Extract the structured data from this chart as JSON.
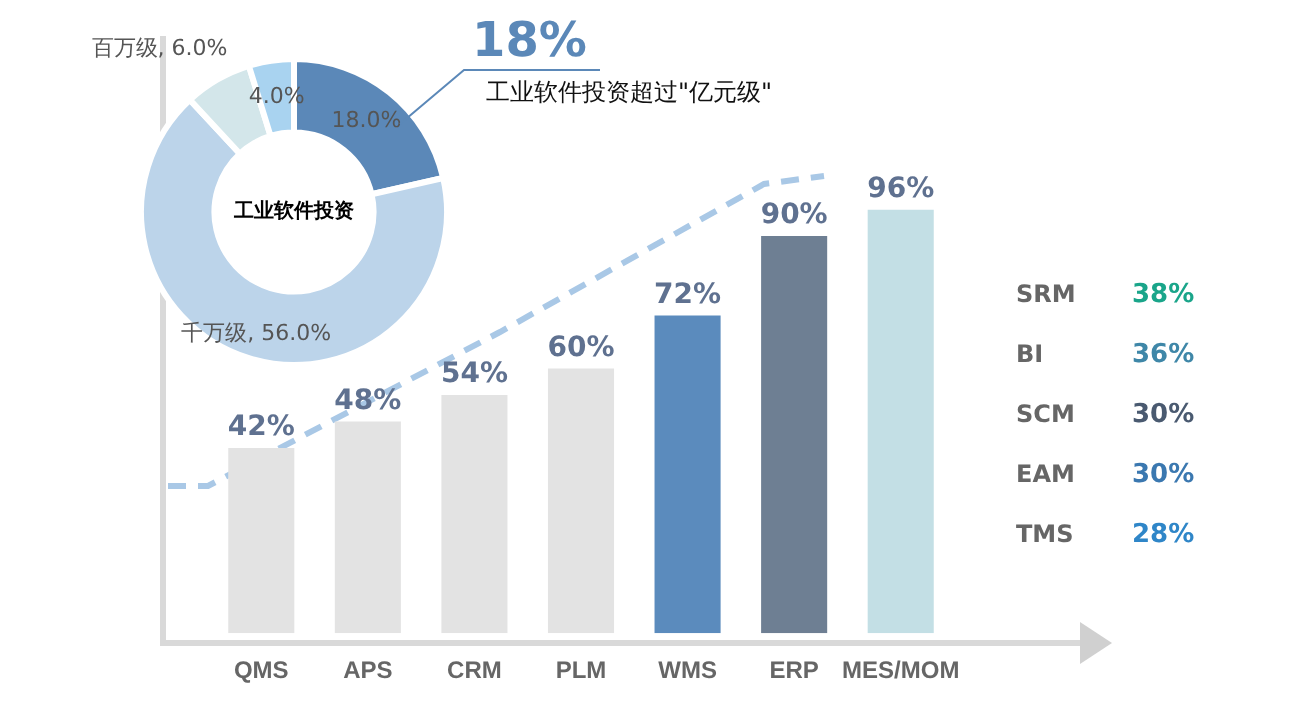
{
  "chart_data": [
    {
      "type": "donut",
      "title": "工业软件投资",
      "categories": [
        null,
        "千万级",
        "百万级",
        null
      ],
      "values": [
        18,
        56,
        6,
        4
      ],
      "colors": [
        "#5b88b8",
        "#bcd4ea",
        "#d3e6ea",
        "#a9d3f0"
      ],
      "value_labels": [
        "18.0%",
        "56.0%",
        "6.0%",
        "4.0%"
      ],
      "annotations": [
        "18%",
        "工业软件投资超过\"亿元级\""
      ]
    },
    {
      "type": "bar",
      "categories": [
        "QMS",
        "APS",
        "CRM",
        "PLM",
        "WMS",
        "ERP",
        "MES/MOM"
      ],
      "values": [
        42,
        48,
        54,
        60,
        72,
        90,
        96
      ],
      "colors": [
        "#e3e3e3",
        "#e3e3e3",
        "#e3e3e3",
        "#e3e3e3",
        "#5b8bbd",
        "#6e7f93",
        "#c3dfe5"
      ],
      "tick_labels": "x",
      "value_labels": [
        "42%",
        "48%",
        "54%",
        "60%",
        "72%",
        "90%",
        "96%"
      ]
    },
    {
      "type": "other",
      "categories": [
        "SRM",
        "BI",
        "SCM",
        "EAM",
        "TMS"
      ],
      "values": [
        38,
        36,
        30,
        30,
        28
      ],
      "colors": [
        "#1aa58a",
        "#3f87a8",
        "#4a5a70",
        "#3b78b0",
        "#2f86c8"
      ],
      "value_labels": [
        "38%",
        "36%",
        "30%",
        "30%",
        "28%"
      ]
    }
  ]
}
